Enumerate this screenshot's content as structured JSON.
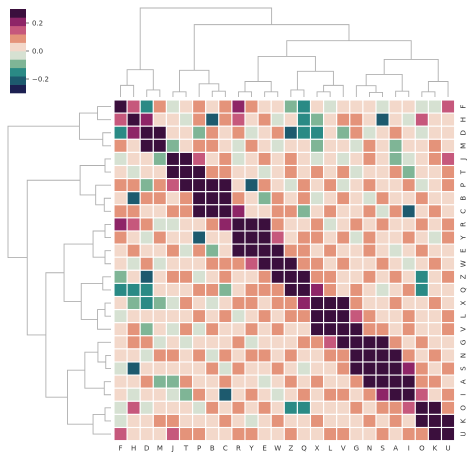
{
  "chart_data": {
    "type": "heatmap",
    "title": "",
    "xlabel": "",
    "ylabel": "",
    "labels": [
      "F",
      "H",
      "D",
      "M",
      "J",
      "T",
      "P",
      "B",
      "C",
      "R",
      "Y",
      "E",
      "W",
      "Z",
      "Q",
      "X",
      "L",
      "V",
      "G",
      "N",
      "S",
      "A",
      "I",
      "O",
      "K",
      "U"
    ],
    "values": [
      [
        1.0,
        0.16,
        -0.16,
        0.08,
        -0.04,
        0.02,
        0.06,
        0.04,
        0.1,
        0.22,
        0.06,
        0.02,
        0.04,
        -0.1,
        -0.14,
        0.0,
        -0.06,
        0.02,
        0.05,
        0.02,
        -0.02,
        0.0,
        0.02,
        -0.04,
        -0.02,
        0.12
      ],
      [
        0.16,
        1.0,
        0.22,
        0.0,
        0.04,
        -0.02,
        0.08,
        -0.22,
        0.1,
        0.16,
        0.0,
        0.06,
        -0.04,
        0.04,
        -0.16,
        -0.08,
        0.0,
        0.06,
        0.08,
        0.04,
        -0.2,
        0.0,
        -0.04,
        0.12,
        0.04,
        0.02
      ],
      [
        -0.16,
        0.22,
        1.0,
        0.3,
        0.04,
        0.02,
        -0.1,
        0.06,
        0.0,
        0.1,
        -0.06,
        0.04,
        0.08,
        -0.22,
        -0.16,
        -0.14,
        0.02,
        -0.08,
        0.1,
        -0.02,
        0.04,
        0.08,
        0.02,
        -0.06,
        0.0,
        0.04
      ],
      [
        0.08,
        0.0,
        0.3,
        1.0,
        -0.08,
        0.04,
        0.1,
        0.06,
        0.02,
        -0.04,
        0.06,
        0.0,
        -0.06,
        0.0,
        0.04,
        -0.1,
        0.02,
        0.04,
        -0.02,
        0.06,
        0.0,
        -0.08,
        0.04,
        0.02,
        0.06,
        0.0
      ],
      [
        -0.04,
        0.04,
        0.04,
        -0.08,
        1.0,
        0.36,
        0.12,
        0.02,
        0.06,
        -0.02,
        0.04,
        0.08,
        0.0,
        0.1,
        0.02,
        -0.06,
        0.04,
        -0.02,
        0.0,
        0.06,
        0.04,
        -0.1,
        -0.04,
        0.02,
        0.1,
        0.14
      ],
      [
        0.02,
        -0.02,
        0.02,
        0.04,
        0.36,
        1.0,
        0.28,
        0.08,
        0.06,
        0.04,
        0.0,
        -0.06,
        0.02,
        0.06,
        0.0,
        0.08,
        0.04,
        0.06,
        -0.04,
        0.0,
        0.02,
        0.06,
        -0.08,
        0.04,
        0.0,
        0.08
      ],
      [
        0.06,
        0.08,
        -0.1,
        0.1,
        0.12,
        0.28,
        1.0,
        0.32,
        0.26,
        0.02,
        -0.24,
        0.06,
        0.0,
        -0.04,
        0.06,
        0.02,
        0.1,
        -0.06,
        0.04,
        0.08,
        0.0,
        0.02,
        0.06,
        -0.06,
        0.0,
        0.1
      ],
      [
        0.04,
        -0.22,
        0.06,
        0.06,
        0.02,
        0.08,
        0.32,
        1.0,
        0.34,
        0.1,
        0.04,
        -0.12,
        0.06,
        0.02,
        0.08,
        -0.04,
        0.0,
        0.06,
        0.02,
        -0.04,
        0.08,
        0.04,
        0.0,
        0.06,
        0.02,
        0.04
      ],
      [
        0.1,
        0.1,
        0.0,
        0.02,
        0.06,
        0.06,
        0.26,
        0.34,
        1.0,
        0.2,
        0.04,
        0.0,
        0.08,
        0.1,
        -0.08,
        0.02,
        0.06,
        0.0,
        0.04,
        0.06,
        -0.02,
        0.06,
        -0.2,
        0.04,
        0.06,
        0.02
      ],
      [
        0.22,
        0.16,
        0.1,
        -0.04,
        -0.02,
        0.04,
        0.02,
        0.1,
        0.2,
        1.0,
        0.36,
        0.24,
        0.1,
        0.04,
        0.0,
        0.06,
        -0.04,
        0.02,
        0.06,
        0.04,
        0.08,
        0.0,
        0.02,
        0.06,
        0.04,
        0.08
      ],
      [
        0.06,
        0.0,
        -0.06,
        0.06,
        0.04,
        0.0,
        -0.24,
        0.04,
        0.04,
        0.36,
        1.0,
        0.3,
        0.16,
        0.02,
        0.06,
        0.08,
        0.04,
        0.1,
        -0.02,
        0.06,
        0.0,
        0.04,
        0.06,
        0.02,
        -0.04,
        0.06
      ],
      [
        0.02,
        0.06,
        0.04,
        0.0,
        0.08,
        -0.06,
        0.06,
        -0.12,
        0.0,
        0.24,
        0.3,
        1.0,
        0.36,
        0.1,
        0.06,
        0.02,
        0.08,
        0.04,
        0.0,
        0.06,
        0.04,
        -0.06,
        0.02,
        0.08,
        0.0,
        0.04
      ],
      [
        0.04,
        -0.04,
        0.08,
        -0.06,
        0.0,
        0.02,
        0.0,
        0.06,
        0.08,
        0.1,
        0.16,
        0.36,
        1.0,
        0.26,
        0.08,
        0.1,
        0.02,
        0.06,
        0.04,
        0.0,
        0.06,
        0.04,
        -0.04,
        0.02,
        0.06,
        0.0
      ],
      [
        -0.1,
        0.04,
        -0.22,
        0.0,
        0.1,
        0.06,
        -0.04,
        0.02,
        0.1,
        0.04,
        0.02,
        0.1,
        0.26,
        1.0,
        0.3,
        0.08,
        0.06,
        0.0,
        0.04,
        0.08,
        0.0,
        0.06,
        0.02,
        -0.18,
        0.04,
        0.06
      ],
      [
        -0.14,
        -0.16,
        -0.16,
        0.04,
        0.02,
        0.0,
        0.06,
        0.08,
        -0.08,
        0.0,
        0.06,
        0.06,
        0.08,
        0.3,
        1.0,
        0.22,
        0.1,
        0.04,
        0.06,
        0.02,
        -0.04,
        0.0,
        0.08,
        -0.16,
        0.02,
        0.04
      ],
      [
        0.0,
        -0.08,
        -0.14,
        -0.1,
        -0.06,
        0.08,
        0.02,
        -0.04,
        0.02,
        0.06,
        0.08,
        0.02,
        0.1,
        0.08,
        0.22,
        1.0,
        0.36,
        0.3,
        0.06,
        0.04,
        0.02,
        0.06,
        0.0,
        0.04,
        0.06,
        0.02
      ],
      [
        -0.06,
        0.0,
        0.02,
        0.02,
        0.04,
        0.04,
        0.1,
        0.0,
        0.06,
        -0.04,
        0.04,
        0.08,
        0.02,
        0.06,
        0.1,
        0.36,
        1.0,
        0.34,
        0.12,
        0.06,
        0.04,
        0.0,
        0.06,
        0.02,
        0.04,
        0.08
      ],
      [
        0.02,
        0.06,
        -0.08,
        0.04,
        -0.02,
        0.06,
        -0.06,
        0.06,
        0.0,
        0.02,
        0.1,
        0.04,
        0.06,
        0.0,
        0.04,
        0.3,
        0.34,
        1.0,
        0.26,
        0.1,
        0.08,
        0.04,
        0.06,
        0.0,
        0.02,
        0.06
      ],
      [
        0.05,
        0.08,
        0.1,
        -0.02,
        0.0,
        -0.04,
        0.04,
        0.02,
        0.04,
        0.06,
        -0.02,
        0.0,
        0.04,
        0.04,
        0.06,
        0.06,
        0.12,
        0.26,
        1.0,
        0.34,
        0.28,
        0.1,
        0.04,
        0.06,
        0.0,
        0.04
      ],
      [
        0.02,
        0.04,
        -0.02,
        0.06,
        0.06,
        0.0,
        0.08,
        -0.04,
        0.06,
        0.04,
        0.06,
        0.06,
        0.0,
        0.08,
        0.02,
        0.04,
        0.06,
        0.1,
        0.34,
        1.0,
        0.38,
        0.3,
        0.08,
        0.04,
        0.06,
        0.02
      ],
      [
        -0.02,
        -0.2,
        0.04,
        0.0,
        0.04,
        0.02,
        0.0,
        0.08,
        -0.02,
        0.08,
        0.0,
        0.04,
        0.06,
        0.0,
        -0.04,
        0.02,
        0.04,
        0.08,
        0.28,
        0.38,
        1.0,
        0.3,
        0.2,
        0.06,
        0.04,
        0.08
      ],
      [
        0.0,
        0.0,
        0.08,
        -0.08,
        -0.1,
        0.06,
        0.02,
        0.04,
        0.06,
        0.0,
        0.04,
        -0.06,
        0.04,
        0.06,
        0.0,
        0.06,
        0.0,
        0.04,
        0.1,
        0.3,
        0.3,
        1.0,
        0.34,
        0.1,
        0.06,
        0.04
      ],
      [
        0.02,
        -0.04,
        0.02,
        0.04,
        -0.04,
        -0.08,
        0.06,
        0.0,
        -0.2,
        0.02,
        0.06,
        0.02,
        -0.04,
        0.02,
        0.08,
        0.0,
        0.06,
        0.06,
        0.04,
        0.08,
        0.2,
        0.34,
        1.0,
        0.12,
        0.04,
        0.06
      ],
      [
        -0.04,
        0.12,
        -0.06,
        0.02,
        0.02,
        0.04,
        -0.06,
        0.06,
        0.04,
        0.06,
        0.02,
        0.08,
        0.02,
        -0.18,
        -0.16,
        0.04,
        0.02,
        0.0,
        0.06,
        0.04,
        0.06,
        0.1,
        0.12,
        1.0,
        0.36,
        0.1
      ],
      [
        -0.02,
        0.04,
        0.0,
        0.06,
        0.1,
        0.0,
        0.0,
        0.02,
        0.06,
        0.04,
        -0.04,
        0.0,
        0.06,
        0.04,
        0.02,
        0.06,
        0.04,
        0.02,
        0.0,
        0.06,
        0.04,
        0.06,
        0.04,
        0.36,
        1.0,
        0.3
      ],
      [
        0.12,
        0.02,
        0.04,
        0.0,
        0.14,
        0.08,
        0.1,
        0.04,
        0.02,
        0.08,
        0.06,
        0.04,
        0.0,
        0.06,
        0.04,
        0.02,
        0.08,
        0.06,
        0.04,
        0.02,
        0.08,
        0.04,
        0.06,
        0.1,
        0.3,
        1.0
      ]
    ],
    "colorbar": {
      "vmin": -0.3,
      "vmax": 0.3,
      "ticks": [
        -0.2,
        0.0,
        0.2
      ],
      "tick_labels": [
        "−0.2",
        "0.0",
        "0.2"
      ],
      "colors": [
        "#1c2051",
        "#1d5a6e",
        "#2a8a85",
        "#7fb596",
        "#d6e1d2",
        "#f3d8ca",
        "#e4937a",
        "#c6587c",
        "#8e2567",
        "#3b0f3d"
      ]
    },
    "dendrogram": "both axes",
    "grid": "white cell borders",
    "line_color": "#b0b0b0"
  }
}
